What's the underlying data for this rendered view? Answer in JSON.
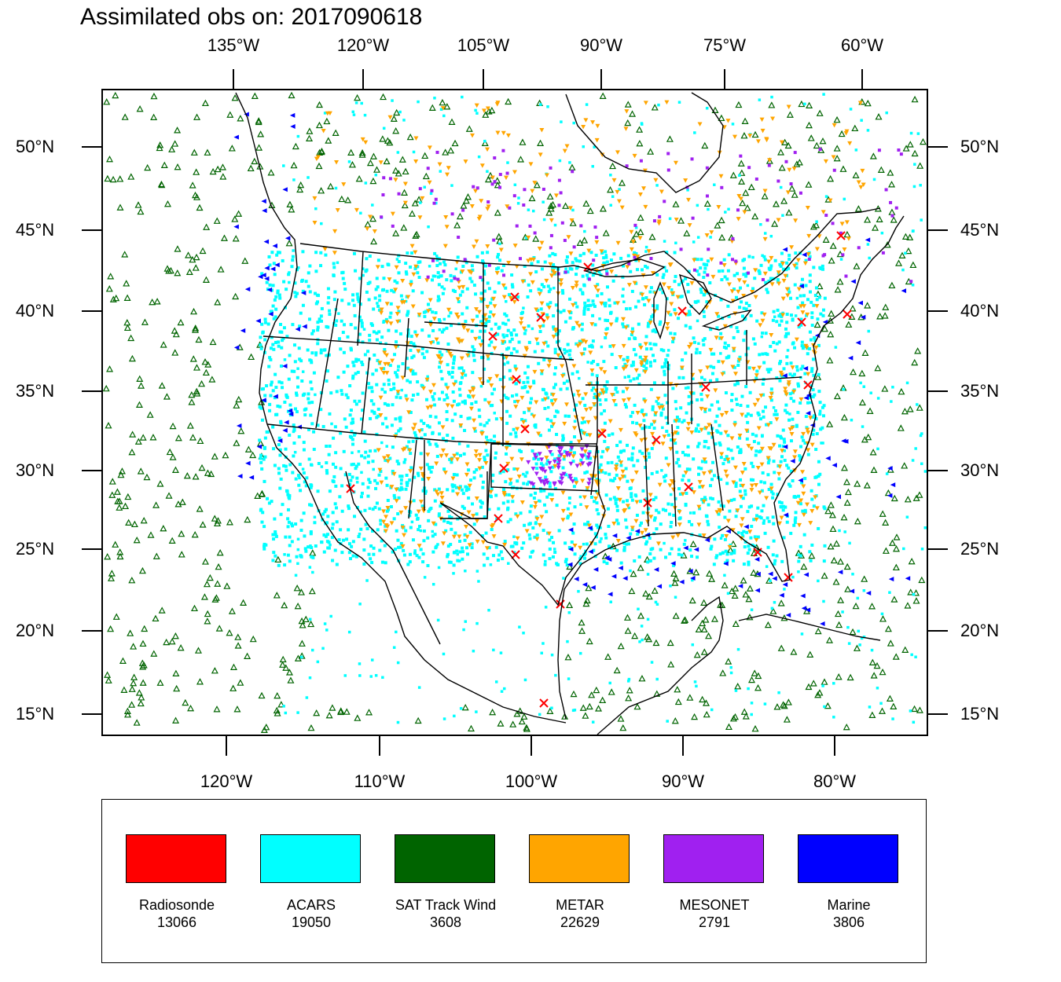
{
  "title": "Assimilated obs on: 2017090618",
  "axes": {
    "top_lon_labels": [
      "135°W",
      "120°W",
      "105°W",
      "90°W",
      "75°W",
      "60°W"
    ],
    "bottom_lon_labels": [
      "120°W",
      "110°W",
      "100°W",
      "90°W",
      "80°W"
    ],
    "lat_labels": [
      "50°N",
      "45°N",
      "40°N",
      "35°N",
      "30°N",
      "25°N",
      "20°N",
      "15°N"
    ]
  },
  "legend": [
    {
      "name": "Radiosonde",
      "count": "13066",
      "color": "#ff0000"
    },
    {
      "name": "ACARS",
      "count": "19050",
      "color": "#00ffff"
    },
    {
      "name": "SAT Track Wind",
      "count": "3608",
      "color": "#006400"
    },
    {
      "name": "METAR",
      "count": "22629",
      "color": "#ffa500"
    },
    {
      "name": "MESONET",
      "count": "2791",
      "color": "#a020f0"
    },
    {
      "name": "Marine",
      "count": "3806",
      "color": "#0000ff"
    }
  ],
  "colors": {
    "frame": "#000000",
    "land_outline": "#000000",
    "background": "#ffffff"
  }
}
